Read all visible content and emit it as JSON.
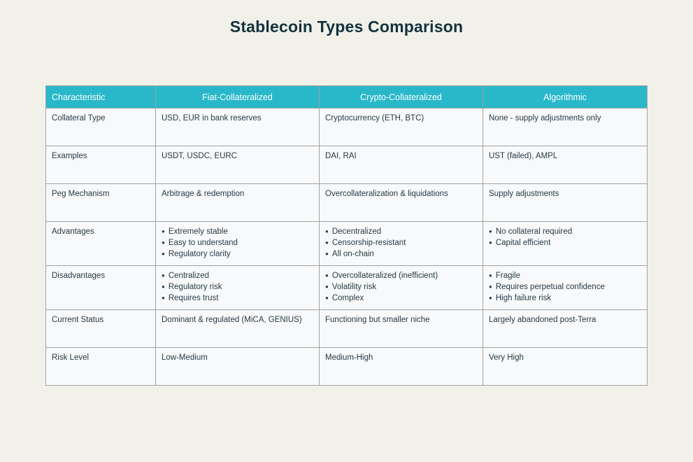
{
  "page": {
    "title": "Stablecoin Types Comparison"
  },
  "colors": {
    "page_bg": "#f1f1ea",
    "title_color": "#14323e",
    "header_bg": "#29b8ca",
    "header_text": "#ffffff",
    "cell_bg": "#f8f9fa",
    "body_text": "#263a46",
    "border_color": "#a2a2a2"
  },
  "chart_data": {
    "type": "table",
    "title": "Stablecoin Types Comparison",
    "bullet_glyph": "●",
    "columns": [
      "Characteristic",
      "Fiat-Collateralized",
      "Crypto-Collateralized",
      "Algorithmic"
    ],
    "rows": [
      {
        "characteristic": "Collateral Type",
        "cells": [
          "USD, EUR in bank reserves",
          "Cryptocurrency (ETH, BTC)",
          "None - supply adjustments only"
        ]
      },
      {
        "characteristic": "Examples",
        "cells": [
          "USDT, USDC, EURC",
          "DAI, RAI",
          "UST (failed), AMPL"
        ]
      },
      {
        "characteristic": "Peg Mechanism",
        "cells": [
          "Arbitrage & redemption",
          "Overcollateralization & liquidations",
          "Supply adjustments"
        ]
      },
      {
        "characteristic": "Advantages",
        "cells": [
          [
            "Extremely stable",
            "Easy to understand",
            "Regulatory clarity"
          ],
          [
            "Decentralized",
            "Censorship-resistant",
            "All on-chain"
          ],
          [
            "No collateral required",
            "Capital efficient"
          ]
        ]
      },
      {
        "characteristic": "Disadvantages",
        "cells": [
          [
            "Centralized",
            "Regulatory risk",
            "Requires trust"
          ],
          [
            "Overcollateralized (inefficient)",
            "Volatility risk",
            "Complex"
          ],
          [
            "Fragile",
            "Requires perpetual confidence",
            "High failure risk"
          ]
        ]
      },
      {
        "characteristic": "Current Status",
        "cells": [
          "Dominant & regulated (MiCA, GENIUS)",
          "Functioning but smaller niche",
          "Largely abandoned post-Terra"
        ]
      },
      {
        "characteristic": "Risk Level",
        "cells": [
          "Low-Medium",
          "Medium-High",
          "Very High"
        ]
      }
    ]
  }
}
